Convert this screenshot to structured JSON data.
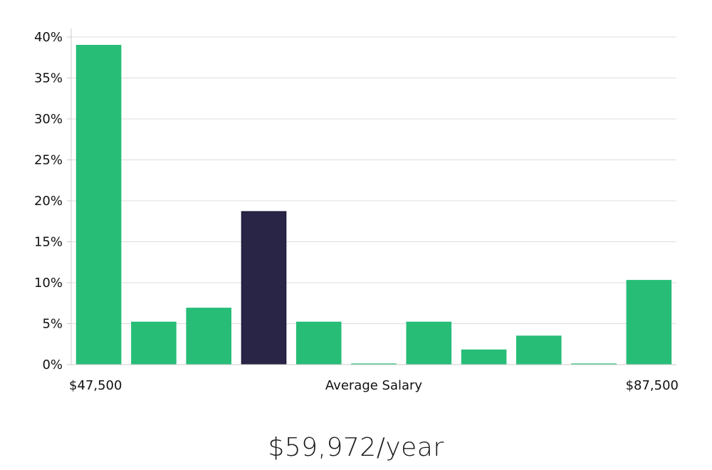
{
  "chart_data": {
    "type": "bar",
    "title": "",
    "xlabel": "Average Salary",
    "ylabel": "",
    "x_range_labels": {
      "min": "$47,500",
      "max": "$87,500"
    },
    "ylim": [
      0,
      40
    ],
    "y_ticks": [
      "0%",
      "5%",
      "10%",
      "15%",
      "20%",
      "25%",
      "30%",
      "35%",
      "40%"
    ],
    "values": [
      39,
      5.2,
      6.9,
      18.7,
      5.2,
      0.1,
      5.2,
      1.8,
      3.5,
      0.1,
      10.3
    ],
    "highlight_index": 3,
    "grid": true,
    "legend": "none"
  },
  "colors": {
    "bar": "#27bd77",
    "highlight": "#292546",
    "highlight_stroke": "#14122e",
    "grid": "#dddddd",
    "axis": "#cccccc"
  },
  "summary": {
    "salary_text": "$59,972/year"
  }
}
